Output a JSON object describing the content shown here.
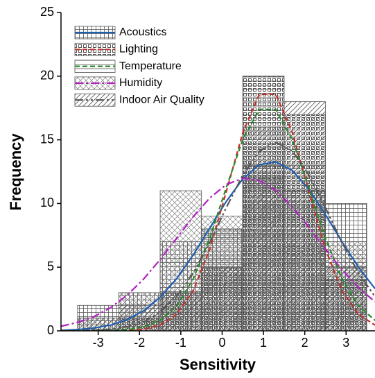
{
  "chart_data": {
    "type": "histogram",
    "xlabel": "Sensitivity",
    "ylabel": "Frequency",
    "xlim": [
      -3.9,
      3.7
    ],
    "ylim": [
      0,
      25
    ],
    "xticks": [
      -3,
      -2,
      -1,
      0,
      1,
      2,
      3
    ],
    "yticks": [
      0,
      5,
      10,
      15,
      20,
      25
    ],
    "legend": "upper left",
    "bins": [
      -3.5,
      -2.5,
      -1.5,
      -0.5,
      0.5,
      1.5,
      2.5,
      3.5
    ],
    "curve_x": [
      -3.9,
      -3.5,
      -3.1,
      -2.7,
      -2.3,
      -1.9,
      -1.5,
      -1.1,
      -0.7,
      -0.3,
      0.1,
      0.5,
      0.9,
      1.3,
      1.7,
      2.1,
      2.5,
      2.9,
      3.3,
      3.7
    ],
    "series": [
      {
        "name": "Acoustics",
        "color": "#1f5fb0",
        "hatch": "grid",
        "line_style": "solid",
        "values": [
          2,
          3,
          7,
          8,
          13,
          11,
          10
        ],
        "curve": [
          0.04,
          0.1,
          0.22,
          0.45,
          0.88,
          1.57,
          2.63,
          4.1,
          5.96,
          8.07,
          10.16,
          11.93,
          13.04,
          13.27,
          12.58,
          11.11,
          9.13,
          7.0,
          4.99,
          3.31
        ]
      },
      {
        "name": "Lighting",
        "color": "#c0302a",
        "hatch": "dots",
        "line_style": "dashed",
        "values": [
          0,
          1,
          3,
          5,
          20,
          17,
          4
        ],
        "curve": [
          0.0,
          0.0,
          0.0,
          0.01,
          0.03,
          0.13,
          0.45,
          1.3,
          3.15,
          6.41,
          10.92,
          15.56,
          18.58,
          18.58,
          15.56,
          10.92,
          6.41,
          3.15,
          1.3,
          0.45
        ]
      },
      {
        "name": "Temperature",
        "color": "#2a8a2a",
        "hatch": "horizontal",
        "line_style": "dashed",
        "values": [
          0,
          1,
          3,
          8,
          20,
          13,
          5
        ],
        "curve": [
          0.0,
          0.0,
          0.01,
          0.03,
          0.09,
          0.3,
          0.82,
          1.97,
          4.07,
          7.28,
          11.24,
          15.03,
          17.38,
          17.38,
          15.03,
          11.24,
          7.28,
          4.07,
          1.97,
          0.82
        ]
      },
      {
        "name": "Humidity",
        "color": "#b020c0",
        "hatch": "cross",
        "line_style": "dashdot",
        "values": [
          1,
          3,
          11,
          9,
          12,
          7,
          7
        ],
        "curve": [
          0.36,
          0.66,
          1.12,
          1.82,
          2.8,
          4.07,
          5.6,
          7.28,
          8.96,
          10.43,
          11.49,
          11.98,
          11.81,
          11.02,
          9.73,
          8.13,
          6.42,
          4.81,
          3.4,
          2.28
        ]
      },
      {
        "name": "Indoor Air Quality",
        "color": "#555555",
        "hatch": "diagonal",
        "line_style": "dashdotdot",
        "values": [
          1,
          2,
          3,
          5,
          16,
          18,
          5
        ],
        "curve": [
          0.0,
          0.02,
          0.05,
          0.13,
          0.32,
          0.71,
          1.46,
          2.69,
          4.54,
          6.94,
          9.67,
          12.24,
          14.12,
          14.8,
          14.12,
          12.24,
          9.67,
          6.94,
          4.54,
          2.69
        ]
      }
    ]
  }
}
